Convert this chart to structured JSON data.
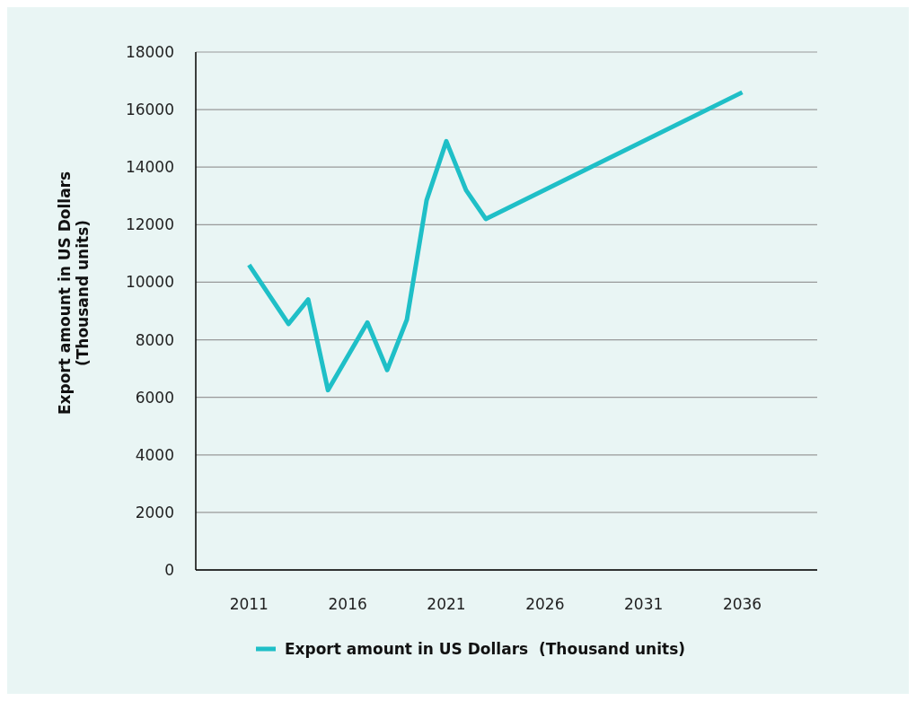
{
  "chart_data": {
    "type": "line",
    "ylabel": "Export amount in US Dollars\n(Thousand units)",
    "x": [
      2011,
      2013,
      2014,
      2015,
      2017,
      2018,
      2019,
      2020,
      2021,
      2022,
      2023,
      2036
    ],
    "series": [
      {
        "name": "Export amount in US Dollars  (Thousand units)",
        "color": "#1fbfc7",
        "values": [
          10600,
          8550,
          9400,
          6250,
          8600,
          6950,
          8700,
          12850,
          14900,
          13200,
          12200,
          16600
        ]
      }
    ],
    "xlim": [
      2008.3,
      2039.8
    ],
    "xticks": [
      2011,
      2016,
      2021,
      2026,
      2031,
      2036
    ],
    "ylim": [
      0,
      18000
    ],
    "yticks": [
      0,
      2000,
      4000,
      6000,
      8000,
      10000,
      12000,
      14000,
      16000,
      18000
    ],
    "grid": "y",
    "legend": "bottom",
    "marker": "none",
    "line_style": "solid"
  }
}
